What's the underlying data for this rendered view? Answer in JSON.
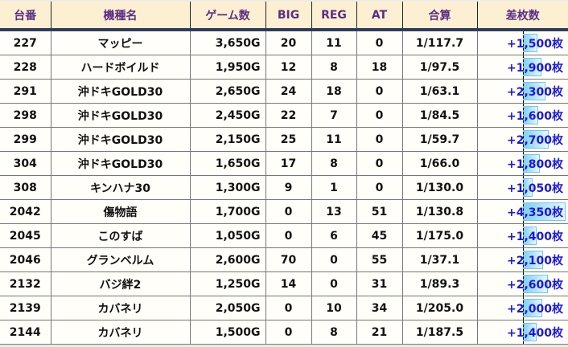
{
  "headers": [
    "台番",
    "機種名",
    "ゲーム数",
    "BIG",
    "REG",
    "AT",
    "合算",
    "差枚数"
  ],
  "rows": [
    {
      "no": "227",
      "name": "マッピー",
      "games": "3,650G",
      "big": "20",
      "reg": "11",
      "at": "0",
      "total": "1/117.7",
      "diff": "+1,500枚",
      "diff_value": 1500
    },
    {
      "no": "228",
      "name": "ハードボイルド",
      "games": "1,950G",
      "big": "12",
      "reg": "8",
      "at": "18",
      "total": "1/97.5",
      "diff": "+1,900枚",
      "diff_value": 1900
    },
    {
      "no": "291",
      "name": "沖ドキGOLD30",
      "games": "2,650G",
      "big": "24",
      "reg": "18",
      "at": "0",
      "total": "1/63.1",
      "diff": "+2,300枚",
      "diff_value": 2300
    },
    {
      "no": "298",
      "name": "沖ドキGOLD30",
      "games": "2,450G",
      "big": "22",
      "reg": "7",
      "at": "0",
      "total": "1/84.5",
      "diff": "+1,600枚",
      "diff_value": 1600
    },
    {
      "no": "299",
      "name": "沖ドキGOLD30",
      "games": "2,150G",
      "big": "25",
      "reg": "11",
      "at": "0",
      "total": "1/59.7",
      "diff": "+2,700枚",
      "diff_value": 2700
    },
    {
      "no": "304",
      "name": "沖ドキGOLD30",
      "games": "1,650G",
      "big": "17",
      "reg": "8",
      "at": "0",
      "total": "1/66.0",
      "diff": "+1,800枚",
      "diff_value": 1800
    },
    {
      "no": "308",
      "name": "キンハナ30",
      "games": "1,300G",
      "big": "9",
      "reg": "1",
      "at": "0",
      "total": "1/130.0",
      "diff": "+1,050枚",
      "diff_value": 1050
    },
    {
      "no": "2042",
      "name": "傷物語",
      "games": "1,700G",
      "big": "0",
      "reg": "13",
      "at": "51",
      "total": "1/130.8",
      "diff": "+4,350枚",
      "diff_value": 4350
    },
    {
      "no": "2045",
      "name": "このすば",
      "games": "1,050G",
      "big": "0",
      "reg": "6",
      "at": "45",
      "total": "1/175.0",
      "diff": "+1,400枚",
      "diff_value": 1400
    },
    {
      "no": "2046",
      "name": "グランベルム",
      "games": "2,600G",
      "big": "70",
      "reg": "0",
      "at": "55",
      "total": "1/37.1",
      "diff": "+2,100枚",
      "diff_value": 2100
    },
    {
      "no": "2132",
      "name": "バジ絆2",
      "games": "1,250G",
      "big": "14",
      "reg": "0",
      "at": "31",
      "total": "1/89.3",
      "diff": "+2,600枚",
      "diff_value": 2600
    },
    {
      "no": "2139",
      "name": "カバネリ",
      "games": "2,050G",
      "big": "0",
      "reg": "10",
      "at": "34",
      "total": "1/205.0",
      "diff": "+2,000枚",
      "diff_value": 2000
    },
    {
      "no": "2144",
      "name": "カバネリ",
      "games": "1,500G",
      "big": "0",
      "reg": "8",
      "at": "21",
      "total": "1/187.5",
      "diff": "+1,400枚",
      "diff_value": 1400
    }
  ],
  "colors": {
    "header_bg": "#fdf0d2",
    "header_text": "#5b2e84",
    "diff_text": "#1a17e0",
    "bar": "#7fd0f5"
  }
}
